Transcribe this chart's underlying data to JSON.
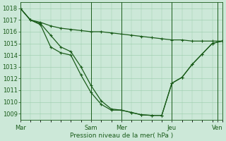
{
  "xlabel": "Pression niveau de la mer( hPa )",
  "background_color": "#cce8d8",
  "grid_color": "#99ccaa",
  "line_color": "#1a5c1a",
  "ylim": [
    1008.5,
    1018.5
  ],
  "yticks": [
    1009,
    1010,
    1011,
    1012,
    1013,
    1014,
    1015,
    1016,
    1017,
    1018
  ],
  "xlim": [
    0,
    8.0
  ],
  "x_day_labels": [
    "Mar",
    "Sam",
    "Mer",
    "Jeu",
    "Ven"
  ],
  "x_day_positions": [
    0.0,
    2.8,
    4.0,
    6.0,
    7.8
  ],
  "series1": {
    "x": [
      0.0,
      0.4,
      0.8,
      1.2,
      1.6,
      2.0,
      2.4,
      2.8,
      3.2,
      3.6,
      4.0,
      4.4,
      4.8,
      5.2,
      5.6,
      6.0,
      6.4,
      6.8,
      7.2,
      7.6,
      8.0
    ],
    "y": [
      1018.0,
      1017.0,
      1016.8,
      1016.5,
      1016.3,
      1016.2,
      1016.1,
      1016.0,
      1016.0,
      1015.9,
      1015.8,
      1015.7,
      1015.6,
      1015.5,
      1015.4,
      1015.3,
      1015.3,
      1015.2,
      1015.2,
      1015.2,
      1015.2
    ]
  },
  "series2": {
    "x": [
      0.0,
      0.4,
      0.8,
      1.2,
      1.6,
      2.0,
      2.4,
      2.8,
      3.2,
      3.6,
      4.0,
      4.4,
      4.8,
      5.2,
      5.6,
      6.0,
      6.4,
      6.8,
      7.2,
      7.6,
      8.0
    ],
    "y": [
      1018.0,
      1017.0,
      1016.7,
      1015.7,
      1014.7,
      1014.3,
      1013.0,
      1011.4,
      1010.1,
      1009.4,
      1009.3,
      1009.1,
      1008.9,
      1008.85,
      1008.85,
      1011.6,
      1012.1,
      1013.2,
      1014.1,
      1015.0,
      1015.2
    ]
  },
  "series3": {
    "x": [
      0.0,
      0.4,
      0.8,
      1.2,
      1.6,
      2.0,
      2.4,
      2.8,
      3.2,
      3.6,
      4.0,
      4.4,
      4.8,
      5.2,
      5.6,
      6.0,
      6.4,
      6.8,
      7.2,
      7.6,
      8.0
    ],
    "y": [
      1018.0,
      1017.0,
      1016.6,
      1014.7,
      1014.2,
      1014.0,
      1012.3,
      1010.8,
      1009.8,
      1009.3,
      1009.3,
      1009.1,
      1008.9,
      1008.85,
      1008.85,
      1011.6,
      1012.1,
      1013.2,
      1014.1,
      1015.0,
      1015.2
    ]
  },
  "marker": "+",
  "markersize": 3,
  "linewidth": 0.9,
  "label_fontsize": 6,
  "xlabel_fontsize": 6.5
}
